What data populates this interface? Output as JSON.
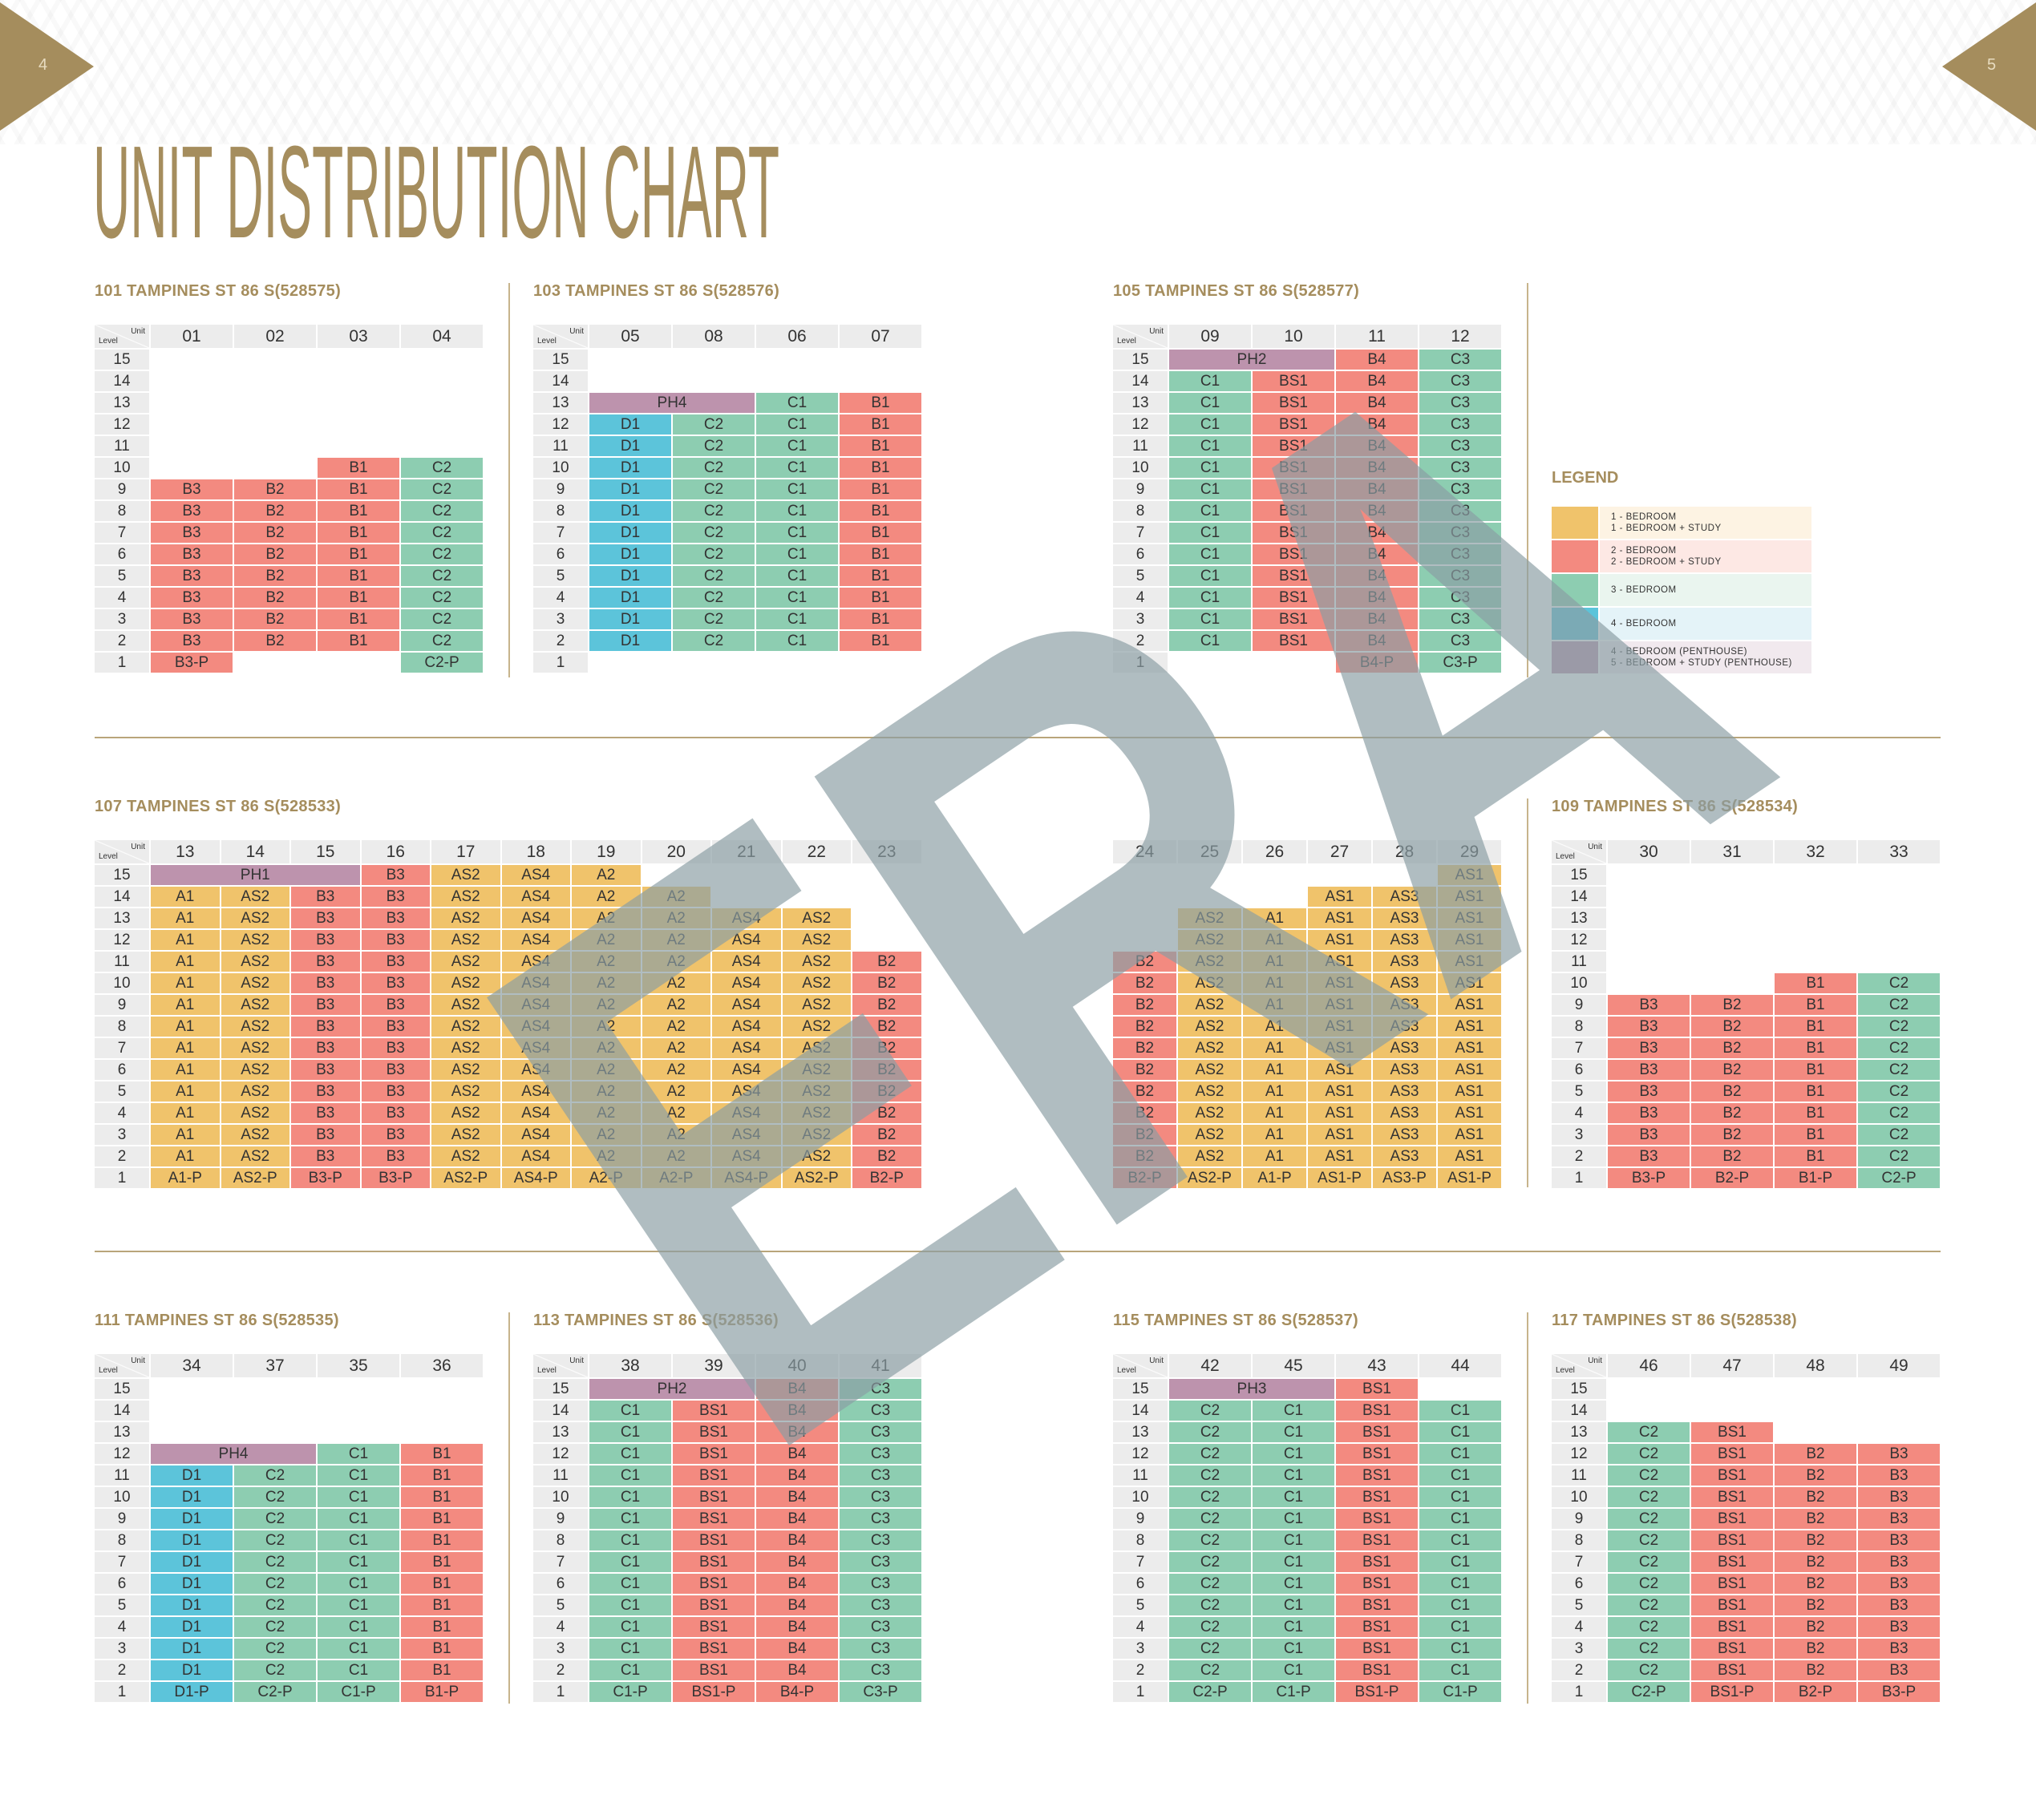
{
  "page": {
    "left_number": "4",
    "right_number": "5",
    "title": "UNIT DISTRIBUTION CHART",
    "watermark": "ERA"
  },
  "corner": {
    "unit": "Unit",
    "level": "Level"
  },
  "levels": [
    "15",
    "14",
    "13",
    "12",
    "11",
    "10",
    "9",
    "8",
    "7",
    "6",
    "5",
    "4",
    "3",
    "2",
    "1"
  ],
  "colors": {
    "A": "#f0c36b",
    "B": "#f38a80",
    "C": "#8dcdb1",
    "D": "#5cc4da",
    "P": "#bd93ad",
    "header": "#ececec",
    "accent": "#a58d5d",
    "watermark": "#8a9ea4"
  },
  "legend": {
    "title": "LEGEND",
    "items": [
      {
        "color": "#f0c36b",
        "bg": "#fdf3e3",
        "lines": [
          "1 - BEDROOM",
          "1 - BEDROOM + STUDY"
        ]
      },
      {
        "color": "#f38a80",
        "bg": "#fde8e4",
        "lines": [
          "2 - BEDROOM",
          "2 - BEDROOM + STUDY"
        ]
      },
      {
        "color": "#8dcdb1",
        "bg": "#eaf5ef",
        "lines": [
          "3 - BEDROOM"
        ]
      },
      {
        "color": "#5cc4da",
        "bg": "#e4f3f8",
        "lines": [
          "4 - BEDROOM"
        ]
      },
      {
        "color": "#bd93ad",
        "bg": "#f1e9ee",
        "lines": [
          "4 - BEDROOM (PENTHOUSE)",
          "5 - BEDROOM + STUDY (PENTHOUSE)"
        ]
      }
    ]
  },
  "blocks": [
    {
      "heading": "101 TAMPINES ST 86 S(528575)",
      "columns": [
        "01",
        "02",
        "03",
        "04"
      ],
      "rows": [
        [
          "",
          "",
          "",
          ""
        ],
        [
          "",
          "",
          "",
          ""
        ],
        [
          "",
          "",
          "",
          ""
        ],
        [
          "",
          "",
          "",
          ""
        ],
        [
          "",
          "",
          "",
          ""
        ],
        [
          "",
          "",
          "B1",
          "C2"
        ],
        [
          "B3",
          "B2",
          "B1",
          "C2"
        ],
        [
          "B3",
          "B2",
          "B1",
          "C2"
        ],
        [
          "B3",
          "B2",
          "B1",
          "C2"
        ],
        [
          "B3",
          "B2",
          "B1",
          "C2"
        ],
        [
          "B3",
          "B2",
          "B1",
          "C2"
        ],
        [
          "B3",
          "B2",
          "B1",
          "C2"
        ],
        [
          "B3",
          "B2",
          "B1",
          "C2"
        ],
        [
          "B3",
          "B2",
          "B1",
          "C2"
        ],
        [
          "B3-P",
          "",
          "",
          "C2-P"
        ]
      ]
    },
    {
      "heading": "103 TAMPINES ST 86 S(528576)",
      "columns": [
        "05",
        "08",
        "06",
        "07"
      ],
      "rows": [
        [
          "",
          "",
          "",
          ""
        ],
        [
          "",
          "",
          "",
          ""
        ],
        [
          {
            "v": "PH4",
            "span": 2
          },
          "C1",
          "B1"
        ],
        [
          "D1",
          "C2",
          "C1",
          "B1"
        ],
        [
          "D1",
          "C2",
          "C1",
          "B1"
        ],
        [
          "D1",
          "C2",
          "C1",
          "B1"
        ],
        [
          "D1",
          "C2",
          "C1",
          "B1"
        ],
        [
          "D1",
          "C2",
          "C1",
          "B1"
        ],
        [
          "D1",
          "C2",
          "C1",
          "B1"
        ],
        [
          "D1",
          "C2",
          "C1",
          "B1"
        ],
        [
          "D1",
          "C2",
          "C1",
          "B1"
        ],
        [
          "D1",
          "C2",
          "C1",
          "B1"
        ],
        [
          "D1",
          "C2",
          "C1",
          "B1"
        ],
        [
          "D1",
          "C2",
          "C1",
          "B1"
        ],
        [
          "",
          "",
          "",
          ""
        ]
      ]
    },
    {
      "heading": "105 TAMPINES ST 86 S(528577)",
      "columns": [
        "09",
        "10",
        "11",
        "12"
      ],
      "rows": [
        [
          {
            "v": "PH2",
            "span": 2
          },
          "B4",
          "C3"
        ],
        [
          "C1",
          "BS1",
          "B4",
          "C3"
        ],
        [
          "C1",
          "BS1",
          "B4",
          "C3"
        ],
        [
          "C1",
          "BS1",
          "B4",
          "C3"
        ],
        [
          "C1",
          "BS1",
          "B4",
          "C3"
        ],
        [
          "C1",
          "BS1",
          "B4",
          "C3"
        ],
        [
          "C1",
          "BS1",
          "B4",
          "C3"
        ],
        [
          "C1",
          "BS1",
          "B4",
          "C3"
        ],
        [
          "C1",
          "BS1",
          "B4",
          "C3"
        ],
        [
          "C1",
          "BS1",
          "B4",
          "C3"
        ],
        [
          "C1",
          "BS1",
          "B4",
          "C3"
        ],
        [
          "C1",
          "BS1",
          "B4",
          "C3"
        ],
        [
          "C1",
          "BS1",
          "B4",
          "C3"
        ],
        [
          "C1",
          "BS1",
          "B4",
          "C3"
        ],
        [
          "",
          "",
          "B4-P",
          "C3-P"
        ]
      ]
    },
    {
      "heading": "107 TAMPINES ST 86 S(528533)",
      "columns": [
        "13",
        "14",
        "15",
        "16",
        "17",
        "18",
        "19",
        "20",
        "21",
        "22",
        "23"
      ],
      "rows": [
        [
          {
            "v": "PH1",
            "span": 3
          },
          "B3",
          "AS2",
          "AS4",
          "A2",
          "",
          "",
          "",
          ""
        ],
        [
          "A1",
          "AS2",
          "B3",
          "B3",
          "AS2",
          "AS4",
          "A2",
          "A2",
          "",
          "",
          ""
        ],
        [
          "A1",
          "AS2",
          "B3",
          "B3",
          "AS2",
          "AS4",
          "A2",
          "A2",
          "AS4",
          "AS2",
          ""
        ],
        [
          "A1",
          "AS2",
          "B3",
          "B3",
          "AS2",
          "AS4",
          "A2",
          "A2",
          "AS4",
          "AS2",
          ""
        ],
        [
          "A1",
          "AS2",
          "B3",
          "B3",
          "AS2",
          "AS4",
          "A2",
          "A2",
          "AS4",
          "AS2",
          "B2"
        ],
        [
          "A1",
          "AS2",
          "B3",
          "B3",
          "AS2",
          "AS4",
          "A2",
          "A2",
          "AS4",
          "AS2",
          "B2"
        ],
        [
          "A1",
          "AS2",
          "B3",
          "B3",
          "AS2",
          "AS4",
          "A2",
          "A2",
          "AS4",
          "AS2",
          "B2"
        ],
        [
          "A1",
          "AS2",
          "B3",
          "B3",
          "AS2",
          "AS4",
          "A2",
          "A2",
          "AS4",
          "AS2",
          "B2"
        ],
        [
          "A1",
          "AS2",
          "B3",
          "B3",
          "AS2",
          "AS4",
          "A2",
          "A2",
          "AS4",
          "AS2",
          "B2"
        ],
        [
          "A1",
          "AS2",
          "B3",
          "B3",
          "AS2",
          "AS4",
          "A2",
          "A2",
          "AS4",
          "AS2",
          "B2"
        ],
        [
          "A1",
          "AS2",
          "B3",
          "B3",
          "AS2",
          "AS4",
          "A2",
          "A2",
          "AS4",
          "AS2",
          "B2"
        ],
        [
          "A1",
          "AS2",
          "B3",
          "B3",
          "AS2",
          "AS4",
          "A2",
          "A2",
          "AS4",
          "AS2",
          "B2"
        ],
        [
          "A1",
          "AS2",
          "B3",
          "B3",
          "AS2",
          "AS4",
          "A2",
          "A2",
          "AS4",
          "AS2",
          "B2"
        ],
        [
          "A1",
          "AS2",
          "B3",
          "B3",
          "AS2",
          "AS4",
          "A2",
          "A2",
          "AS4",
          "AS2",
          "B2"
        ],
        [
          "A1-P",
          "AS2-P",
          "B3-P",
          "B3-P",
          "AS2-P",
          "AS4-P",
          "A2-P",
          "A2-P",
          "AS4-P",
          "AS2-P",
          "B2-P"
        ]
      ]
    },
    {
      "heading": "",
      "columns": [
        "24",
        "25",
        "26",
        "27",
        "28",
        "29"
      ],
      "rows": [
        [
          "",
          "",
          "",
          "",
          "",
          "AS1"
        ],
        [
          "",
          "",
          "",
          "AS1",
          "AS3",
          "AS1"
        ],
        [
          "",
          "AS2",
          "A1",
          "AS1",
          "AS3",
          "AS1"
        ],
        [
          "",
          "AS2",
          "A1",
          "AS1",
          "AS3",
          "AS1"
        ],
        [
          "B2",
          "AS2",
          "A1",
          "AS1",
          "AS3",
          "AS1"
        ],
        [
          "B2",
          "AS2",
          "A1",
          "AS1",
          "AS3",
          "AS1"
        ],
        [
          "B2",
          "AS2",
          "A1",
          "AS1",
          "AS3",
          "AS1"
        ],
        [
          "B2",
          "AS2",
          "A1",
          "AS1",
          "AS3",
          "AS1"
        ],
        [
          "B2",
          "AS2",
          "A1",
          "AS1",
          "AS3",
          "AS1"
        ],
        [
          "B2",
          "AS2",
          "A1",
          "AS1",
          "AS3",
          "AS1"
        ],
        [
          "B2",
          "AS2",
          "A1",
          "AS1",
          "AS3",
          "AS1"
        ],
        [
          "B2",
          "AS2",
          "A1",
          "AS1",
          "AS3",
          "AS1"
        ],
        [
          "B2",
          "AS2",
          "A1",
          "AS1",
          "AS3",
          "AS1"
        ],
        [
          "B2",
          "AS2",
          "A1",
          "AS1",
          "AS3",
          "AS1"
        ],
        [
          "B2-P",
          "AS2-P",
          "A1-P",
          "AS1-P",
          "AS3-P",
          "AS1-P"
        ]
      ]
    },
    {
      "heading": "109 TAMPINES ST 86 S(528534)",
      "columns": [
        "30",
        "31",
        "32",
        "33"
      ],
      "rows": [
        [
          "",
          "",
          "",
          ""
        ],
        [
          "",
          "",
          "",
          ""
        ],
        [
          "",
          "",
          "",
          ""
        ],
        [
          "",
          "",
          "",
          ""
        ],
        [
          "",
          "",
          "",
          ""
        ],
        [
          "",
          "",
          "B1",
          "C2"
        ],
        [
          "B3",
          "B2",
          "B1",
          "C2"
        ],
        [
          "B3",
          "B2",
          "B1",
          "C2"
        ],
        [
          "B3",
          "B2",
          "B1",
          "C2"
        ],
        [
          "B3",
          "B2",
          "B1",
          "C2"
        ],
        [
          "B3",
          "B2",
          "B1",
          "C2"
        ],
        [
          "B3",
          "B2",
          "B1",
          "C2"
        ],
        [
          "B3",
          "B2",
          "B1",
          "C2"
        ],
        [
          "B3",
          "B2",
          "B1",
          "C2"
        ],
        [
          "B3-P",
          "B2-P",
          "B1-P",
          "C2-P"
        ]
      ]
    },
    {
      "heading": "111 TAMPINES ST 86 S(528535)",
      "columns": [
        "34",
        "37",
        "35",
        "36"
      ],
      "rows": [
        [
          "",
          "",
          "",
          ""
        ],
        [
          "",
          "",
          "",
          ""
        ],
        [
          "",
          "",
          "",
          ""
        ],
        [
          {
            "v": "PH4",
            "span": 2
          },
          "C1",
          "B1"
        ],
        [
          "D1",
          "C2",
          "C1",
          "B1"
        ],
        [
          "D1",
          "C2",
          "C1",
          "B1"
        ],
        [
          "D1",
          "C2",
          "C1",
          "B1"
        ],
        [
          "D1",
          "C2",
          "C1",
          "B1"
        ],
        [
          "D1",
          "C2",
          "C1",
          "B1"
        ],
        [
          "D1",
          "C2",
          "C1",
          "B1"
        ],
        [
          "D1",
          "C2",
          "C1",
          "B1"
        ],
        [
          "D1",
          "C2",
          "C1",
          "B1"
        ],
        [
          "D1",
          "C2",
          "C1",
          "B1"
        ],
        [
          "D1",
          "C2",
          "C1",
          "B1"
        ],
        [
          "D1-P",
          "C2-P",
          "C1-P",
          "B1-P"
        ]
      ]
    },
    {
      "heading": "113 TAMPINES ST 86 S(528536)",
      "columns": [
        "38",
        "39",
        "40",
        "41"
      ],
      "rows": [
        [
          {
            "v": "PH2",
            "span": 2
          },
          "B4",
          "C3"
        ],
        [
          "C1",
          "BS1",
          "B4",
          "C3"
        ],
        [
          "C1",
          "BS1",
          "B4",
          "C3"
        ],
        [
          "C1",
          "BS1",
          "B4",
          "C3"
        ],
        [
          "C1",
          "BS1",
          "B4",
          "C3"
        ],
        [
          "C1",
          "BS1",
          "B4",
          "C3"
        ],
        [
          "C1",
          "BS1",
          "B4",
          "C3"
        ],
        [
          "C1",
          "BS1",
          "B4",
          "C3"
        ],
        [
          "C1",
          "BS1",
          "B4",
          "C3"
        ],
        [
          "C1",
          "BS1",
          "B4",
          "C3"
        ],
        [
          "C1",
          "BS1",
          "B4",
          "C3"
        ],
        [
          "C1",
          "BS1",
          "B4",
          "C3"
        ],
        [
          "C1",
          "BS1",
          "B4",
          "C3"
        ],
        [
          "C1",
          "BS1",
          "B4",
          "C3"
        ],
        [
          "C1-P",
          "BS1-P",
          "B4-P",
          "C3-P"
        ]
      ]
    },
    {
      "heading": "115 TAMPINES ST 86 S(528537)",
      "columns": [
        "42",
        "45",
        "43",
        "44"
      ],
      "rows": [
        [
          {
            "v": "PH3",
            "span": 2
          },
          "BS1",
          ""
        ],
        [
          "C2",
          "C1",
          "BS1",
          "C1"
        ],
        [
          "C2",
          "C1",
          "BS1",
          "C1"
        ],
        [
          "C2",
          "C1",
          "BS1",
          "C1"
        ],
        [
          "C2",
          "C1",
          "BS1",
          "C1"
        ],
        [
          "C2",
          "C1",
          "BS1",
          "C1"
        ],
        [
          "C2",
          "C1",
          "BS1",
          "C1"
        ],
        [
          "C2",
          "C1",
          "BS1",
          "C1"
        ],
        [
          "C2",
          "C1",
          "BS1",
          "C1"
        ],
        [
          "C2",
          "C1",
          "BS1",
          "C1"
        ],
        [
          "C2",
          "C1",
          "BS1",
          "C1"
        ],
        [
          "C2",
          "C1",
          "BS1",
          "C1"
        ],
        [
          "C2",
          "C1",
          "BS1",
          "C1"
        ],
        [
          "C2",
          "C1",
          "BS1",
          "C1"
        ],
        [
          "C2-P",
          "C1-P",
          "BS1-P",
          "C1-P"
        ]
      ]
    },
    {
      "heading": "117 TAMPINES ST 86 S(528538)",
      "columns": [
        "46",
        "47",
        "48",
        "49"
      ],
      "rows": [
        [
          "",
          "",
          "",
          ""
        ],
        [
          "",
          "",
          "",
          ""
        ],
        [
          "C2",
          "BS1",
          "",
          ""
        ],
        [
          "C2",
          "BS1",
          "B2",
          "B3"
        ],
        [
          "C2",
          "BS1",
          "B2",
          "B3"
        ],
        [
          "C2",
          "BS1",
          "B2",
          "B3"
        ],
        [
          "C2",
          "BS1",
          "B2",
          "B3"
        ],
        [
          "C2",
          "BS1",
          "B2",
          "B3"
        ],
        [
          "C2",
          "BS1",
          "B2",
          "B3"
        ],
        [
          "C2",
          "BS1",
          "B2",
          "B3"
        ],
        [
          "C2",
          "BS1",
          "B2",
          "B3"
        ],
        [
          "C2",
          "BS1",
          "B2",
          "B3"
        ],
        [
          "C2",
          "BS1",
          "B2",
          "B3"
        ],
        [
          "C2",
          "BS1",
          "B2",
          "B3"
        ],
        [
          "C2-P",
          "BS1-P",
          "B2-P",
          "B3-P"
        ]
      ]
    }
  ]
}
